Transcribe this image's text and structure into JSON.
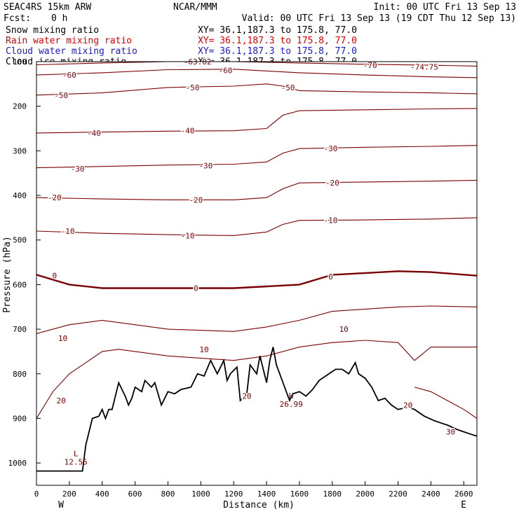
{
  "header": {
    "model": "SEAC4RS 15km ARW",
    "center": "NCAR/MMM",
    "init": "Init: 00 UTC Fri 13 Sep 13",
    "fcst_label": "Fcst:",
    "fcst_value": "0 h",
    "valid": "Valid: 00 UTC Fri 13 Sep 13 (19 CDT Thu 12 Sep 13)"
  },
  "fields": [
    {
      "name": "Snow mixing ratio",
      "xy": "XY=  36.1,187.3 to 175.8, 77.0",
      "color": "#000000"
    },
    {
      "name": "Rain water mixing ratio",
      "xy": "XY=  36.1,187.3 to 175.8, 77.0",
      "color": "#e00000"
    },
    {
      "name": "Cloud water mixing ratio",
      "xy": "XY=  36.1,187.3 to 175.8, 77.0",
      "color": "#1a1ad0"
    },
    {
      "name": "Cloud ice mixing ratio",
      "xy": "XY=  36.1,187.3 to 175.8, 77.0",
      "color": "#000000"
    }
  ],
  "colors": {
    "contour": "#7a0000",
    "zero_contour": "#7a0000",
    "terrain": "#000000"
  },
  "chart_data": {
    "type": "line",
    "xlabel": "Distance (km)",
    "ylabel": "Pressure (hPa)",
    "xlim": [
      0,
      2680
    ],
    "ylim": [
      1050,
      100
    ],
    "x_ticks": [
      0,
      200,
      400,
      600,
      800,
      1000,
      1200,
      1400,
      1600,
      1800,
      2000,
      2200,
      2400,
      2600
    ],
    "y_ticks": [
      100,
      200,
      300,
      400,
      500,
      600,
      700,
      800,
      900,
      1000
    ],
    "x_tick_labels": [
      "0",
      "200",
      "400",
      "600",
      "800",
      "1000",
      "1200",
      "1400",
      "1600",
      "1800",
      "2000",
      "2200",
      "2400",
      "2600"
    ],
    "y_tick_labels": [
      "100",
      "200",
      "300",
      "400",
      "500",
      "600",
      "700",
      "800",
      "900",
      "1000"
    ],
    "end_labels": {
      "left": "W",
      "right": "E"
    },
    "terrain_surface": {
      "x": [
        0,
        280,
        300,
        340,
        380,
        400,
        420,
        440,
        460,
        500,
        540,
        560,
        580,
        600,
        640,
        660,
        700,
        720,
        760,
        800,
        840,
        880,
        940,
        980,
        1020,
        1060,
        1100,
        1140,
        1160,
        1180,
        1220,
        1240,
        1280,
        1300,
        1340,
        1360,
        1400,
        1420,
        1440,
        1460,
        1500,
        1540,
        1560,
        1600,
        1640,
        1680,
        1720,
        1780,
        1820,
        1860,
        1900,
        1940,
        1960,
        2000,
        2040,
        2080,
        2120,
        2160,
        2200,
        2260,
        2300,
        2360,
        2420,
        2500,
        2560,
        2600,
        2640,
        2680
      ],
      "y": [
        1018,
        1018,
        960,
        900,
        895,
        880,
        900,
        880,
        880,
        820,
        850,
        870,
        855,
        830,
        840,
        815,
        830,
        820,
        870,
        840,
        845,
        835,
        830,
        800,
        805,
        770,
        800,
        770,
        815,
        800,
        785,
        860,
        845,
        780,
        800,
        760,
        820,
        770,
        740,
        780,
        820,
        860,
        845,
        840,
        850,
        835,
        815,
        800,
        790,
        790,
        800,
        775,
        800,
        810,
        830,
        860,
        855,
        870,
        880,
        875,
        880,
        895,
        905,
        915,
        925,
        930,
        935,
        940
      ]
    },
    "temperature_contours": [
      {
        "value": -70,
        "x": [
          0,
          400,
          800,
          1200,
          1600,
          2000,
          2400,
          2680
        ],
        "y": [
          107,
          103,
          100,
          100,
          103,
          106,
          108,
          110
        ],
        "label": "-70",
        "label_x": 2080
      },
      {
        "value": -60,
        "x": [
          0,
          400,
          800,
          1200,
          1600,
          2000,
          2400,
          2680
        ],
        "y": [
          130,
          125,
          118,
          117,
          125,
          130,
          134,
          136
        ],
        "label": "-60",
        "label_x": 1170
      },
      {
        "value": -50,
        "x": [
          0,
          400,
          800,
          1200,
          1400,
          1500,
          1600,
          2000,
          2400,
          2680
        ],
        "y": [
          175,
          170,
          158,
          155,
          150,
          155,
          165,
          168,
          170,
          172
        ],
        "label": "-50",
        "label_x": 950
      },
      {
        "value": -40,
        "x": [
          0,
          400,
          800,
          1200,
          1400,
          1500,
          1600,
          2000,
          2400,
          2680
        ],
        "y": [
          260,
          258,
          256,
          255,
          250,
          220,
          210,
          208,
          206,
          205
        ],
        "label": "-40",
        "label_x": 350
      },
      {
        "value": -30,
        "x": [
          0,
          400,
          800,
          1200,
          1400,
          1500,
          1600,
          2000,
          2400,
          2680
        ],
        "y": [
          338,
          335,
          332,
          330,
          325,
          305,
          295,
          292,
          290,
          288
        ],
        "label": "-30",
        "label_x": 1050
      },
      {
        "value": -20,
        "x": [
          0,
          400,
          800,
          1200,
          1400,
          1500,
          1600,
          2000,
          2400,
          2680
        ],
        "y": [
          405,
          408,
          410,
          410,
          405,
          385,
          372,
          370,
          368,
          366
        ],
        "label": "-20",
        "label_x": 960
      },
      {
        "value": -10,
        "x": [
          0,
          400,
          800,
          1200,
          1400,
          1500,
          1600,
          2000,
          2400,
          2680
        ],
        "y": [
          480,
          485,
          488,
          490,
          482,
          465,
          456,
          455,
          453,
          450
        ],
        "label": "-10",
        "label_x": 920
      },
      {
        "value": 0,
        "x": [
          0,
          200,
          400,
          800,
          1200,
          1400,
          1600,
          1800,
          2000,
          2200,
          2400,
          2680
        ],
        "y": [
          578,
          600,
          608,
          608,
          608,
          604,
          600,
          578,
          574,
          570,
          572,
          580
        ],
        "label": "0",
        "label_x": 1000,
        "bold": true
      },
      {
        "value": 10,
        "x": [
          0,
          200,
          400,
          800,
          1200,
          1400,
          1600,
          1800,
          2000,
          2200,
          2400,
          2680
        ],
        "y": [
          710,
          690,
          680,
          700,
          705,
          695,
          680,
          660,
          655,
          650,
          648,
          650
        ],
        "label": "10",
        "label_x": 1000
      },
      {
        "value": 20,
        "x": [
          0,
          100,
          200,
          280,
          300,
          400,
          500,
          800,
          1200,
          1400,
          1600,
          1800,
          2000,
          2200,
          2300,
          2400,
          2680
        ],
        "y": [
          900,
          840,
          800,
          780,
          775,
          750,
          745,
          760,
          770,
          760,
          740,
          730,
          725,
          730,
          770,
          740,
          740
        ],
        "label": "20",
        "label_x": 2250
      },
      {
        "value": 30,
        "x": [
          2300,
          2400,
          2500,
          2600,
          2680
        ],
        "y": [
          830,
          840,
          860,
          880,
          900
        ],
        "label": "30",
        "label_x": 2560
      }
    ],
    "extrema": [
      {
        "type": "L",
        "value": "12.55",
        "x": 240,
        "y": 985
      },
      {
        "type": "H",
        "value": "26.99",
        "x": 1550,
        "y": 855
      }
    ],
    "contour_labels": [
      {
        "text": "-74.75",
        "x": 2360,
        "y": 112
      },
      {
        "text": "-63.02",
        "x": 980,
        "y": 100
      },
      {
        "text": "-60",
        "x": 200,
        "y": 130
      },
      {
        "text": "-60",
        "x": 1150,
        "y": 120
      },
      {
        "text": "-70",
        "x": 2030,
        "y": 108
      },
      {
        "text": "-50",
        "x": 150,
        "y": 175
      },
      {
        "text": "-50",
        "x": 950,
        "y": 158
      },
      {
        "text": "-50",
        "x": 1530,
        "y": 158
      },
      {
        "text": "-40",
        "x": 350,
        "y": 260
      },
      {
        "text": "-40",
        "x": 920,
        "y": 255
      },
      {
        "text": "-30",
        "x": 250,
        "y": 340
      },
      {
        "text": "-30",
        "x": 1030,
        "y": 333
      },
      {
        "text": "-30",
        "x": 1790,
        "y": 295
      },
      {
        "text": "-20",
        "x": 110,
        "y": 405
      },
      {
        "text": "-20",
        "x": 970,
        "y": 410
      },
      {
        "text": "-20",
        "x": 1800,
        "y": 372
      },
      {
        "text": "-10",
        "x": 190,
        "y": 480
      },
      {
        "text": "-10",
        "x": 920,
        "y": 490
      },
      {
        "text": "-10",
        "x": 1790,
        "y": 456
      },
      {
        "text": "0",
        "x": 110,
        "y": 580
      },
      {
        "text": "0",
        "x": 970,
        "y": 608
      },
      {
        "text": "0",
        "x": 1790,
        "y": 582
      },
      {
        "text": "10",
        "x": 160,
        "y": 720
      },
      {
        "text": "10",
        "x": 1020,
        "y": 745
      },
      {
        "text": "10",
        "x": 1870,
        "y": 700
      },
      {
        "text": "20",
        "x": 150,
        "y": 860
      },
      {
        "text": "20",
        "x": 1280,
        "y": 850
      },
      {
        "text": "20",
        "x": 2260,
        "y": 870
      },
      {
        "text": "30",
        "x": 2520,
        "y": 930
      }
    ]
  }
}
